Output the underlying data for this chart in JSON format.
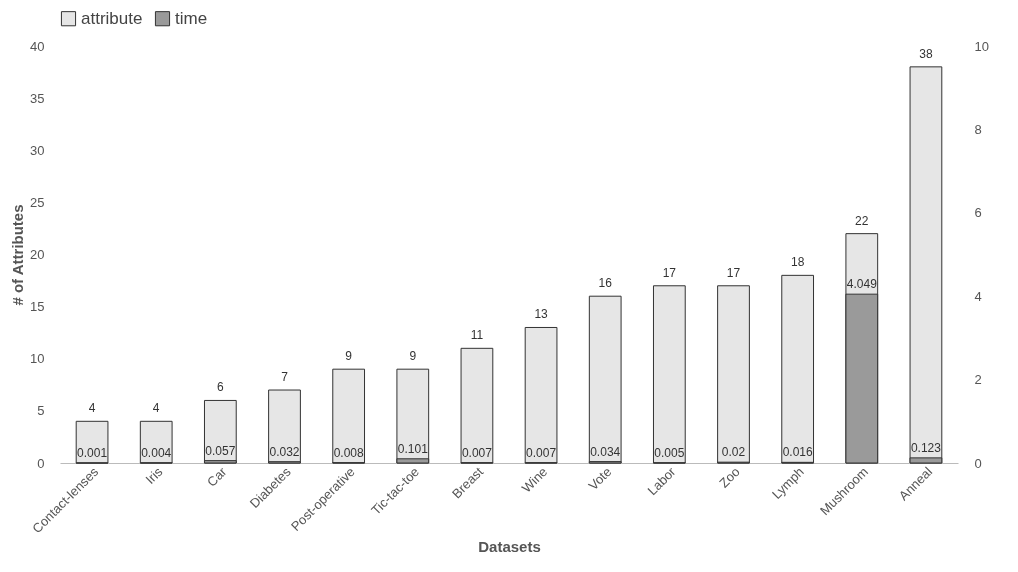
{
  "chart_data": {
    "type": "bar",
    "xlabel": "Datasets",
    "ylabel": "# of Attributes",
    "categories": [
      "Contact-lenses",
      "Iris",
      "Car",
      "Diabetes",
      "Post-operative",
      "Tic-tac-toe",
      "Breast",
      "Wine",
      "Vote",
      "Labor",
      "Zoo",
      "Lymph",
      "Mushroom",
      "Anneal"
    ],
    "series": [
      {
        "name": "attribute",
        "color": "#e6e6e6",
        "values": [
          4,
          4,
          6,
          7,
          9,
          9,
          11,
          13,
          16,
          17,
          17,
          18,
          22,
          38
        ]
      },
      {
        "name": "time",
        "color": "#9a9a9a",
        "axis": "y2",
        "values": [
          0.001,
          0.004,
          0.057,
          0.032,
          0.008,
          0.101,
          0.007,
          0.007,
          0.034,
          0.005,
          0.02,
          0.016,
          4.049,
          0.123
        ]
      }
    ],
    "ylim": [
      0,
      40
    ],
    "yticks": [
      0,
      5,
      10,
      15,
      20,
      25,
      30,
      35,
      40
    ],
    "y2lim": [
      0,
      10
    ],
    "y2ticks": [
      0,
      2,
      4,
      6,
      8,
      10
    ],
    "data_labels": true,
    "legend": "top",
    "grid": false
  }
}
